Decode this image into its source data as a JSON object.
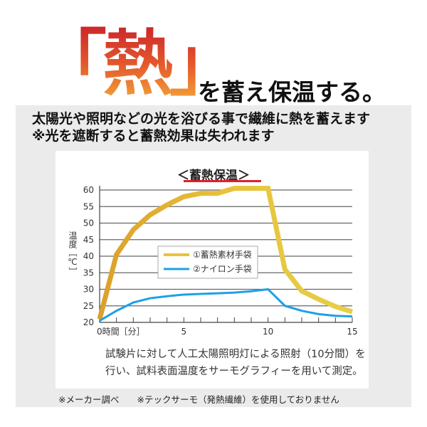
{
  "header": {
    "hero": "「熱」",
    "subtitle": "を蓄え保温する。"
  },
  "description": {
    "line1": "太陽光や照明などの光を浴びる事で繊維に熱を蓄えます",
    "line2": "※光を遮断すると蓄熱効果は失われます"
  },
  "chart_data": {
    "type": "line",
    "title": "＜蓄熱保温＞",
    "xlabel": "時間［分］",
    "ylabel": "温度［℃］",
    "xlim": [
      0,
      15
    ],
    "ylim": [
      20,
      60
    ],
    "x_ticks": [
      0,
      5,
      10,
      15
    ],
    "y_ticks": [
      20,
      25,
      30,
      35,
      40,
      45,
      50,
      55,
      60
    ],
    "grid": true,
    "legend_position": "center",
    "x": [
      0,
      1,
      2,
      3,
      4,
      5,
      6,
      7,
      8,
      9,
      10,
      11,
      12,
      13,
      14,
      15
    ],
    "series": [
      {
        "name": "①蓄熱素材手袋",
        "color": "#e8c23a",
        "values": [
          21,
          40.5,
          48,
          52.5,
          55.5,
          58,
          59,
          59,
          60.5,
          60.5,
          60.5,
          36,
          29.5,
          27,
          24.8,
          23.2
        ]
      },
      {
        "name": "②ナイロン手袋",
        "color": "#1ea0e6",
        "values": [
          20.5,
          23.5,
          26,
          27.3,
          27.9,
          28.4,
          28.6,
          28.8,
          29,
          29.4,
          30,
          25,
          23.5,
          22.5,
          22,
          21.8
        ]
      }
    ]
  },
  "note": {
    "line1": "試験片に対して人工太陽照明灯による照射（10分間）を",
    "line2": "行い、試料表面温度をサーモグラフィーを用いて測定。"
  },
  "footer": "※メーカー調べ　　※テックサーモ（発熱繊維）を使用しておりません"
}
